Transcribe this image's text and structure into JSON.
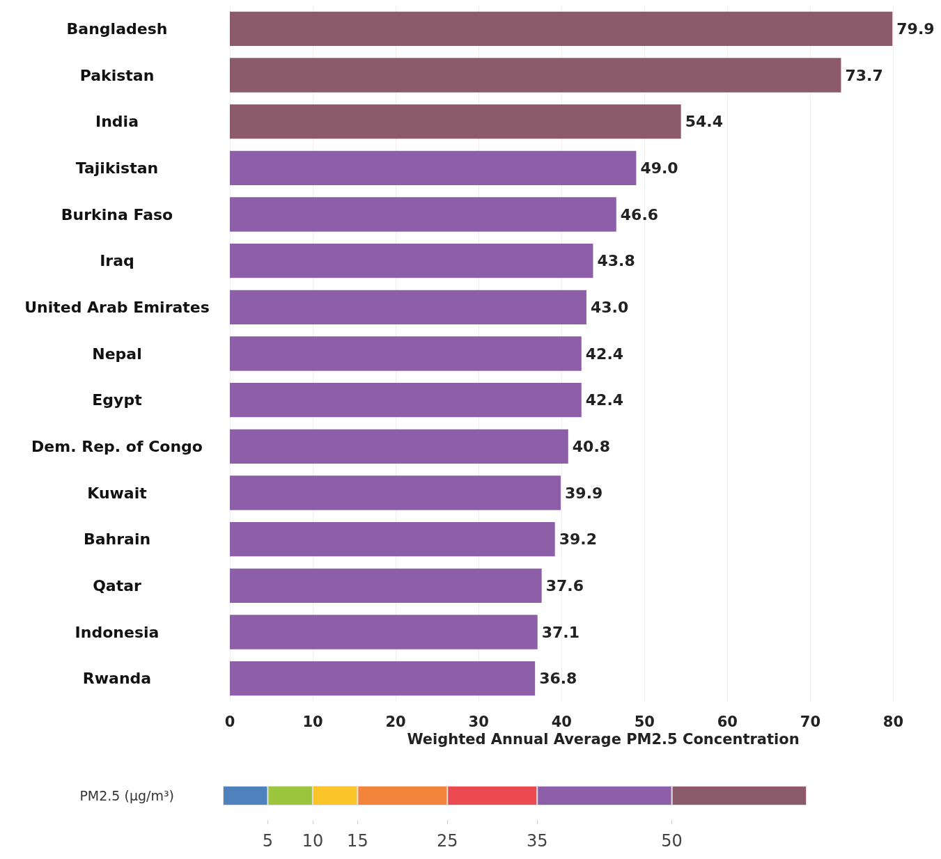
{
  "chart_data": [
    {
      "type": "bar",
      "orientation": "horizontal",
      "categories": [
        "Bangladesh",
        "Pakistan",
        "India",
        "Tajikistan",
        "Burkina Faso",
        "Iraq",
        "United Arab Emirates",
        "Nepal",
        "Egypt",
        "Dem. Rep. of Congo",
        "Kuwait",
        "Bahrain",
        "Qatar",
        "Indonesia",
        "Rwanda"
      ],
      "values": [
        79.9,
        73.7,
        54.4,
        49.0,
        46.6,
        43.8,
        43.0,
        42.4,
        42.4,
        40.8,
        39.9,
        39.2,
        37.6,
        37.1,
        36.8
      ],
      "colors": [
        "#8b5a6b",
        "#8b5a6b",
        "#8b5a6b",
        "#8d5fa8",
        "#8d5fa8",
        "#8d5fa8",
        "#8d5fa8",
        "#8d5fa8",
        "#8d5fa8",
        "#8d5fa8",
        "#8d5fa8",
        "#8d5fa8",
        "#8d5fa8",
        "#8d5fa8",
        "#8d5fa8"
      ],
      "value_labels": [
        "79.9",
        "73.7",
        "54.4",
        "49.0",
        "46.6",
        "43.8",
        "43.0",
        "42.4",
        "42.4",
        "40.8",
        "39.9",
        "39.2",
        "37.6",
        "37.1",
        "36.8"
      ],
      "xlim": [
        0,
        85
      ],
      "xticks": [
        0,
        10,
        20,
        30,
        40,
        50,
        60,
        70,
        80
      ],
      "xlabel": "Weighted Annual Average PM2.5 Concentration",
      "grid": "x"
    },
    {
      "type": "bar",
      "orientation": "horizontal",
      "stacked": true,
      "categories": [
        null
      ],
      "ylabel": "PM2.5 (μg/m³)",
      "xlim": [
        0,
        65
      ],
      "xticks": [
        5,
        10,
        15,
        25,
        35,
        50
      ],
      "tick_labels": "x",
      "grid": false,
      "series": [
        {
          "color": "#4f81bd",
          "values": [
            5
          ]
        },
        {
          "color": "#9bc53d",
          "values": [
            5
          ]
        },
        {
          "color": "#fbc52a",
          "values": [
            5
          ]
        },
        {
          "color": "#f3843c",
          "values": [
            10
          ]
        },
        {
          "color": "#ea4a50",
          "values": [
            10
          ]
        },
        {
          "color": "#8d5fa8",
          "values": [
            15
          ]
        },
        {
          "color": "#8b5a6b",
          "values": [
            15
          ]
        }
      ]
    }
  ]
}
